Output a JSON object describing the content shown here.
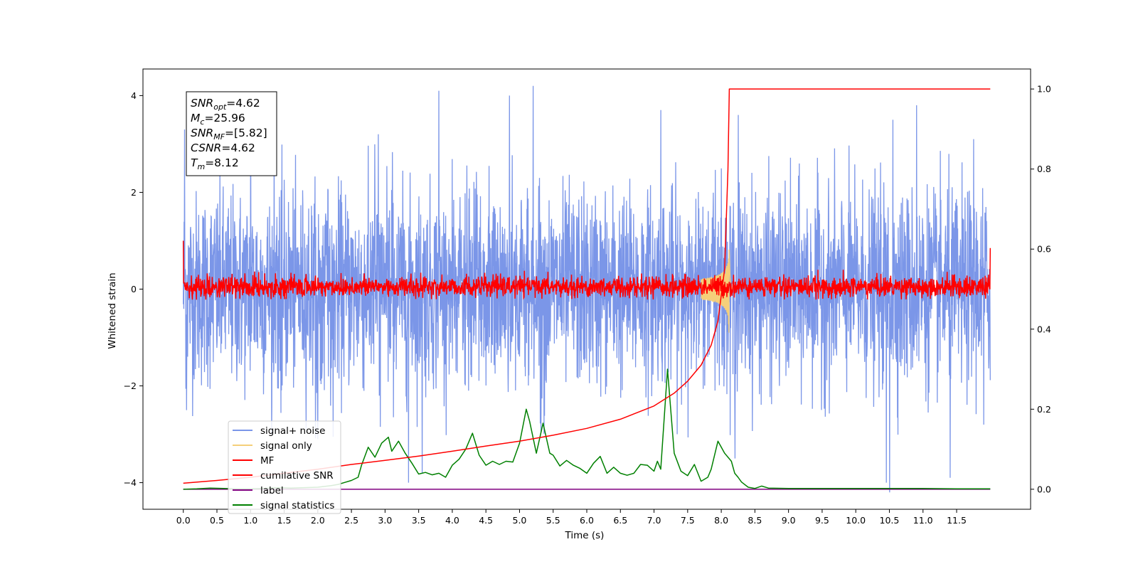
{
  "chart_data": {
    "type": "line",
    "title": "",
    "xlabel": "Time (s)",
    "ylabel": "Whitened strain",
    "y2label": "",
    "xlim": [
      -0.6,
      12.6
    ],
    "ylim": [
      -4.55,
      4.55
    ],
    "y2lim": [
      -0.05,
      1.05
    ],
    "x_ticks": [
      0.0,
      0.5,
      1.0,
      1.5,
      2.0,
      2.5,
      3.0,
      3.5,
      4.0,
      4.5,
      5.0,
      5.5,
      6.0,
      6.5,
      7.0,
      7.5,
      8.0,
      8.5,
      9.0,
      9.5,
      10.0,
      10.5,
      11.0,
      11.5
    ],
    "x_tick_labels": [
      "0.0",
      "0.5",
      "1.0",
      "1.5",
      "2.0",
      "2.5",
      "3.0",
      "3.5",
      "4.0",
      "4.5",
      "5.0",
      "5.5",
      "6.0",
      "6.5",
      "7.0",
      "7.5",
      "8.0",
      "8.5",
      "9.0",
      "9.5",
      "10.0",
      "10.5",
      "11.0",
      "11.5"
    ],
    "y_ticks": [
      -4,
      -2,
      0,
      2,
      4
    ],
    "y_tick_labels": [
      "−4",
      "−2",
      "0",
      "2",
      "4"
    ],
    "y2_ticks": [
      0.0,
      0.2,
      0.4,
      0.6,
      0.8,
      1.0
    ],
    "y2_tick_labels": [
      "0.0",
      "0.2",
      "0.4",
      "0.6",
      "0.8",
      "1.0"
    ],
    "grid": false,
    "legend_position": "lower-left",
    "info_box": {
      "snr_opt": {
        "base": "SNR",
        "sub": "opt",
        "value": "=4.62"
      },
      "mc": {
        "base": "M",
        "sub": "c",
        "value": "=25.96"
      },
      "snr_mf": {
        "base": "SNR",
        "sub": "MF",
        "value": "=[5.82]"
      },
      "csnr": {
        "base": "CSNR",
        "value": "=4.62"
      },
      "tm": {
        "base": "T",
        "sub": "m",
        "value": "=8.12"
      }
    },
    "series": [
      {
        "name": "signal+ noise",
        "color": "#7b96e8",
        "axis": "left",
        "kind": "noise",
        "note": "dense whitened noise spanning 0-12 s, roughly -3 to +3, peaks to 4.2 and -4",
        "peaks": [
          [
            0.02,
            3.3
          ],
          [
            1.0,
            3.9
          ],
          [
            1.35,
            3.3
          ],
          [
            2.9,
            3.2
          ],
          [
            3.8,
            4.1
          ],
          [
            4.85,
            4.0
          ],
          [
            5.2,
            4.2
          ],
          [
            7.1,
            3.7
          ],
          [
            8.25,
            3.6
          ],
          [
            10.55,
            3.5
          ],
          [
            10.9,
            3.8
          ],
          [
            11.75,
            3.1
          ]
        ],
        "troughs": [
          [
            0.05,
            -2.5
          ],
          [
            2.0,
            -3.1
          ],
          [
            3.35,
            -4.0
          ],
          [
            3.55,
            -3.8
          ],
          [
            8.2,
            -3.5
          ],
          [
            10.45,
            -4.0
          ],
          [
            10.5,
            -4.2
          ],
          [
            11.4,
            -3.9
          ],
          [
            11.9,
            -2.8
          ]
        ]
      },
      {
        "name": "signal only",
        "color": "#f5cf7a",
        "axis": "left",
        "kind": "chirp",
        "t_merge": 8.12,
        "peak_amplitude": 1.1
      },
      {
        "name": "MF",
        "color": "#ff0000",
        "axis": "left",
        "kind": "noise",
        "note": "matched-filter output, band about -0.25 to 0.35",
        "start_value": 1.0,
        "end_value": 0.85
      },
      {
        "name": "cumilative SNR",
        "color": "#ff0000",
        "axis": "right",
        "x": [
          0.0,
          0.5,
          1.0,
          1.5,
          2.0,
          2.5,
          3.0,
          3.5,
          4.0,
          4.5,
          5.0,
          5.5,
          6.0,
          6.5,
          7.0,
          7.3,
          7.5,
          7.7,
          7.85,
          7.95,
          8.05,
          8.1,
          8.12,
          9.0,
          10.0,
          11.0,
          12.0
        ],
        "values": [
          0.015,
          0.022,
          0.03,
          0.04,
          0.05,
          0.062,
          0.072,
          0.083,
          0.095,
          0.108,
          0.12,
          0.135,
          0.152,
          0.175,
          0.208,
          0.24,
          0.27,
          0.31,
          0.36,
          0.42,
          0.55,
          0.8,
          1.0,
          1.0,
          1.0,
          1.0,
          1.0
        ]
      },
      {
        "name": "label",
        "color": "#800080",
        "axis": "right",
        "x": [
          0.0,
          12.0
        ],
        "values": [
          0.0,
          0.0
        ]
      },
      {
        "name": "signal statistics",
        "color": "#008000",
        "axis": "right",
        "x": [
          0.0,
          0.2,
          0.4,
          0.6,
          0.8,
          1.0,
          1.2,
          1.4,
          1.6,
          1.8,
          2.0,
          2.2,
          2.3,
          2.4,
          2.5,
          2.6,
          2.65,
          2.75,
          2.85,
          2.95,
          3.05,
          3.1,
          3.2,
          3.3,
          3.4,
          3.5,
          3.6,
          3.7,
          3.8,
          3.9,
          4.0,
          4.1,
          4.2,
          4.3,
          4.4,
          4.5,
          4.6,
          4.7,
          4.8,
          4.9,
          5.0,
          5.1,
          5.15,
          5.25,
          5.35,
          5.45,
          5.5,
          5.6,
          5.7,
          5.8,
          5.9,
          6.0,
          6.1,
          6.2,
          6.3,
          6.4,
          6.5,
          6.6,
          6.7,
          6.8,
          6.9,
          7.0,
          7.05,
          7.1,
          7.2,
          7.3,
          7.4,
          7.5,
          7.6,
          7.7,
          7.8,
          7.85,
          7.95,
          8.05,
          8.15,
          8.2,
          8.25,
          8.3,
          8.4,
          8.5,
          8.6,
          8.7,
          9.0,
          9.5,
          10.0,
          10.5,
          11.0,
          11.5,
          12.0
        ],
        "values": [
          0.0,
          0.001,
          0.003,
          0.002,
          0.001,
          0.001,
          0.002,
          0.004,
          0.003,
          0.004,
          0.005,
          0.009,
          0.012,
          0.017,
          0.022,
          0.03,
          0.06,
          0.105,
          0.08,
          0.115,
          0.13,
          0.095,
          0.12,
          0.09,
          0.065,
          0.038,
          0.042,
          0.036,
          0.04,
          0.03,
          0.06,
          0.075,
          0.1,
          0.14,
          0.085,
          0.06,
          0.07,
          0.062,
          0.07,
          0.068,
          0.115,
          0.2,
          0.17,
          0.09,
          0.165,
          0.09,
          0.085,
          0.058,
          0.072,
          0.06,
          0.052,
          0.04,
          0.065,
          0.082,
          0.04,
          0.055,
          0.04,
          0.035,
          0.04,
          0.062,
          0.06,
          0.045,
          0.07,
          0.05,
          0.3,
          0.09,
          0.045,
          0.034,
          0.062,
          0.02,
          0.03,
          0.05,
          0.12,
          0.09,
          0.07,
          0.04,
          0.03,
          0.018,
          0.005,
          0.002,
          0.008,
          0.003,
          0.002,
          0.002,
          0.002,
          0.002,
          0.002,
          0.001,
          0.001
        ]
      }
    ]
  }
}
